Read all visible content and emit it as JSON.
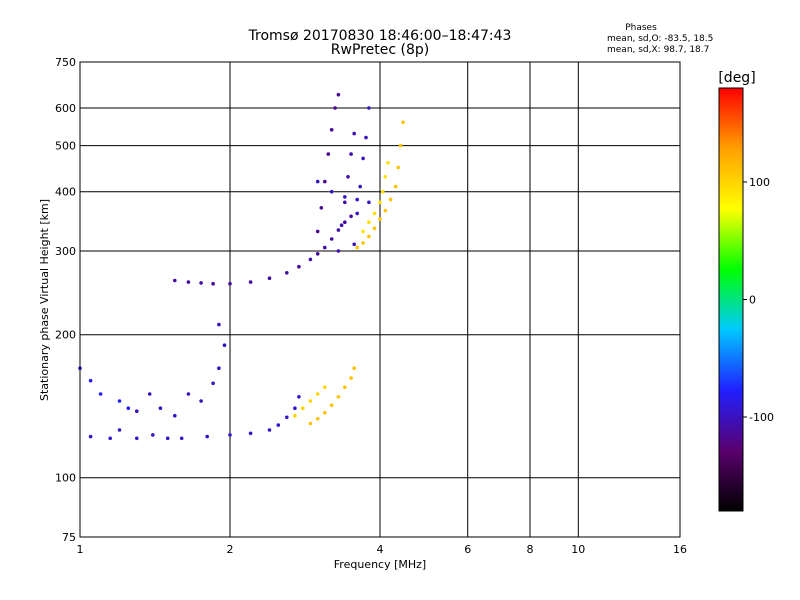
{
  "header": {
    "title_line1": "Tromsø 20170830 18:46:00–18:47:43",
    "title_line2": "RwPretec (8p)"
  },
  "phases_box": {
    "heading": "Phases",
    "line_o": "mean, sd,O:  -83.5, 18.5",
    "line_x": "mean, sd,X:  98.7, 18.7"
  },
  "colorbar": {
    "unit_label": "[deg]",
    "min": -180,
    "max": 180,
    "ticks": [
      100,
      0,
      -100
    ],
    "colors": [
      "#000000",
      "#5a006e",
      "#2020ff",
      "#00c8ff",
      "#00ff00",
      "#ffff00",
      "#ffa000",
      "#ff0000"
    ]
  },
  "chart_data": {
    "type": "scatter",
    "xlabel": "Frequency [MHz]",
    "ylabel": "Stationary phase Virtual Height [km]",
    "x_scale": "log",
    "y_scale": "log",
    "xlim": [
      1,
      16
    ],
    "ylim": [
      75,
      750
    ],
    "x_ticks": [
      1,
      2,
      4,
      6,
      8,
      10,
      16
    ],
    "y_ticks": [
      75,
      100,
      200,
      300,
      400,
      500,
      600,
      750
    ],
    "grid": true,
    "color_by": "phase_deg",
    "traces": [
      {
        "phase": -110,
        "points": [
          [
            1.55,
            260
          ],
          [
            1.65,
            258
          ],
          [
            1.75,
            257
          ],
          [
            1.85,
            256
          ],
          [
            2.0,
            256
          ],
          [
            2.2,
            258
          ],
          [
            2.4,
            263
          ],
          [
            2.6,
            270
          ],
          [
            2.75,
            278
          ],
          [
            2.9,
            288
          ],
          [
            3.0,
            296
          ],
          [
            3.1,
            305
          ],
          [
            3.2,
            318
          ],
          [
            3.3,
            332
          ],
          [
            3.4,
            345
          ],
          [
            3.5,
            355
          ]
        ]
      },
      {
        "phase": -115,
        "points": [
          [
            3.0,
            330
          ],
          [
            3.05,
            370
          ],
          [
            3.1,
            420
          ],
          [
            3.15,
            480
          ],
          [
            3.2,
            540
          ],
          [
            3.25,
            600
          ],
          [
            3.3,
            640
          ]
        ]
      },
      {
        "phase": -105,
        "points": [
          [
            3.3,
            300
          ],
          [
            3.35,
            340
          ],
          [
            3.4,
            380
          ],
          [
            3.45,
            430
          ],
          [
            3.5,
            480
          ],
          [
            3.55,
            530
          ]
        ]
      },
      {
        "phase": -100,
        "points": [
          [
            3.55,
            310
          ],
          [
            3.6,
            360
          ],
          [
            3.65,
            410
          ],
          [
            3.7,
            470
          ],
          [
            3.75,
            520
          ],
          [
            3.8,
            600
          ]
        ]
      },
      {
        "phase": -95,
        "points": [
          [
            3.0,
            420
          ],
          [
            3.2,
            400
          ],
          [
            3.4,
            390
          ],
          [
            3.6,
            385
          ],
          [
            3.8,
            380
          ]
        ]
      },
      {
        "phase": 110,
        "points": [
          [
            3.6,
            305
          ],
          [
            3.7,
            312
          ],
          [
            3.8,
            322
          ],
          [
            3.9,
            335
          ],
          [
            4.0,
            350
          ],
          [
            4.1,
            365
          ],
          [
            4.2,
            385
          ],
          [
            4.3,
            410
          ],
          [
            4.35,
            450
          ],
          [
            4.4,
            500
          ],
          [
            4.45,
            560
          ]
        ]
      },
      {
        "phase": 95,
        "points": [
          [
            3.7,
            330
          ],
          [
            3.8,
            345
          ],
          [
            3.9,
            360
          ],
          [
            4.0,
            380
          ],
          [
            4.05,
            400
          ],
          [
            4.1,
            430
          ],
          [
            4.15,
            460
          ]
        ]
      },
      {
        "phase": -95,
        "points": [
          [
            1.05,
            122
          ],
          [
            1.15,
            121
          ],
          [
            1.3,
            121
          ],
          [
            1.4,
            123
          ],
          [
            1.5,
            121
          ],
          [
            1.6,
            121
          ],
          [
            1.8,
            122
          ],
          [
            2.0,
            123
          ],
          [
            2.2,
            124
          ],
          [
            2.4,
            126
          ],
          [
            2.5,
            129
          ],
          [
            2.6,
            134
          ],
          [
            2.7,
            140
          ],
          [
            2.75,
            148
          ]
        ]
      },
      {
        "phase": -100,
        "points": [
          [
            1.2,
            126
          ],
          [
            1.3,
            138
          ],
          [
            1.38,
            150
          ],
          [
            1.45,
            140
          ],
          [
            1.55,
            135
          ],
          [
            1.65,
            150
          ],
          [
            1.75,
            145
          ],
          [
            1.85,
            158
          ],
          [
            1.9,
            170
          ],
          [
            1.95,
            190
          ],
          [
            1.9,
            210
          ]
        ]
      },
      {
        "phase": 110,
        "points": [
          [
            2.9,
            130
          ],
          [
            3.0,
            133
          ],
          [
            3.1,
            137
          ],
          [
            3.2,
            142
          ],
          [
            3.3,
            148
          ],
          [
            3.4,
            155
          ],
          [
            3.5,
            162
          ],
          [
            3.55,
            170
          ]
        ]
      },
      {
        "phase": 100,
        "points": [
          [
            2.7,
            135
          ],
          [
            2.8,
            140
          ],
          [
            2.9,
            145
          ],
          [
            3.0,
            150
          ],
          [
            3.1,
            155
          ]
        ]
      },
      {
        "phase": -80,
        "points": [
          [
            1.0,
            170
          ],
          [
            1.05,
            160
          ],
          [
            1.1,
            150
          ],
          [
            1.2,
            145
          ],
          [
            1.25,
            140
          ]
        ]
      }
    ]
  }
}
